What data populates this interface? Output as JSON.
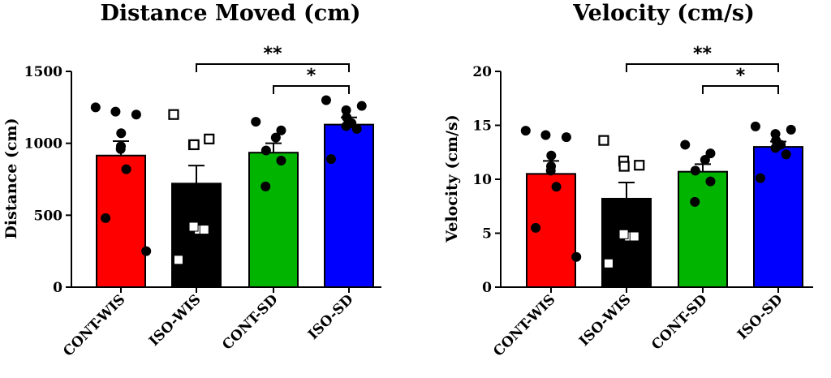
{
  "chart_data": [
    {
      "type": "bar",
      "title": "Distance Moved (cm)",
      "ylabel": "Distance (cm)",
      "ylim": [
        0,
        1500
      ],
      "yticks": [
        0,
        500,
        1000,
        1500
      ],
      "categories": [
        "CONT-WIS",
        "ISO-WIS",
        "CONT-SD",
        "ISO-SD"
      ],
      "colors": [
        "#ff0000",
        "#000000",
        "#00b400",
        "#0000ff"
      ],
      "values": [
        915,
        720,
        935,
        1130
      ],
      "errors": [
        100,
        125,
        65,
        50
      ],
      "points": [
        [
          1250,
          1200,
          1220,
          1070,
          980,
          960,
          820,
          480,
          250
        ],
        [
          1200,
          1030,
          990,
          990,
          400,
          420,
          400,
          190
        ],
        [
          1150,
          1090,
          1040,
          950,
          880,
          700
        ],
        [
          1300,
          1260,
          1230,
          1180,
          1140,
          1120,
          1100,
          890
        ]
      ],
      "marker_styles": [
        "filled-circle",
        "open-square",
        "filled-circle",
        "filled-circle"
      ],
      "significance": [
        {
          "from": "ISO-WIS",
          "to": "ISO-SD",
          "label": "**"
        },
        {
          "from": "CONT-SD",
          "to": "ISO-SD",
          "label": "*"
        }
      ]
    },
    {
      "type": "bar",
      "title": "Velocity (cm/s)",
      "ylabel": "Velocity (cm/s)",
      "ylim": [
        0,
        20
      ],
      "yticks": [
        0,
        5,
        10,
        15,
        20
      ],
      "categories": [
        "CONT-WIS",
        "ISO-WIS",
        "CONT-SD",
        "ISO-SD"
      ],
      "colors": [
        "#ff0000",
        "#000000",
        "#00b400",
        "#0000ff"
      ],
      "values": [
        10.5,
        8.2,
        10.7,
        13.0
      ],
      "errors": [
        1.2,
        1.5,
        0.7,
        0.5
      ],
      "points": [
        [
          14.5,
          13.9,
          14.1,
          12.2,
          11.2,
          10.8,
          9.3,
          5.5,
          2.8
        ],
        [
          13.6,
          11.3,
          11.7,
          11.2,
          4.7,
          4.9,
          4.7,
          2.2
        ],
        [
          13.2,
          12.4,
          11.8,
          10.8,
          9.8,
          7.9
        ],
        [
          14.9,
          14.6,
          14.2,
          13.6,
          13.2,
          12.9,
          12.3,
          10.1
        ]
      ],
      "marker_styles": [
        "filled-circle",
        "open-square",
        "filled-circle",
        "filled-circle"
      ],
      "significance": [
        {
          "from": "ISO-WIS",
          "to": "ISO-SD",
          "label": "**"
        },
        {
          "from": "CONT-SD",
          "to": "ISO-SD",
          "label": "*"
        }
      ]
    }
  ]
}
